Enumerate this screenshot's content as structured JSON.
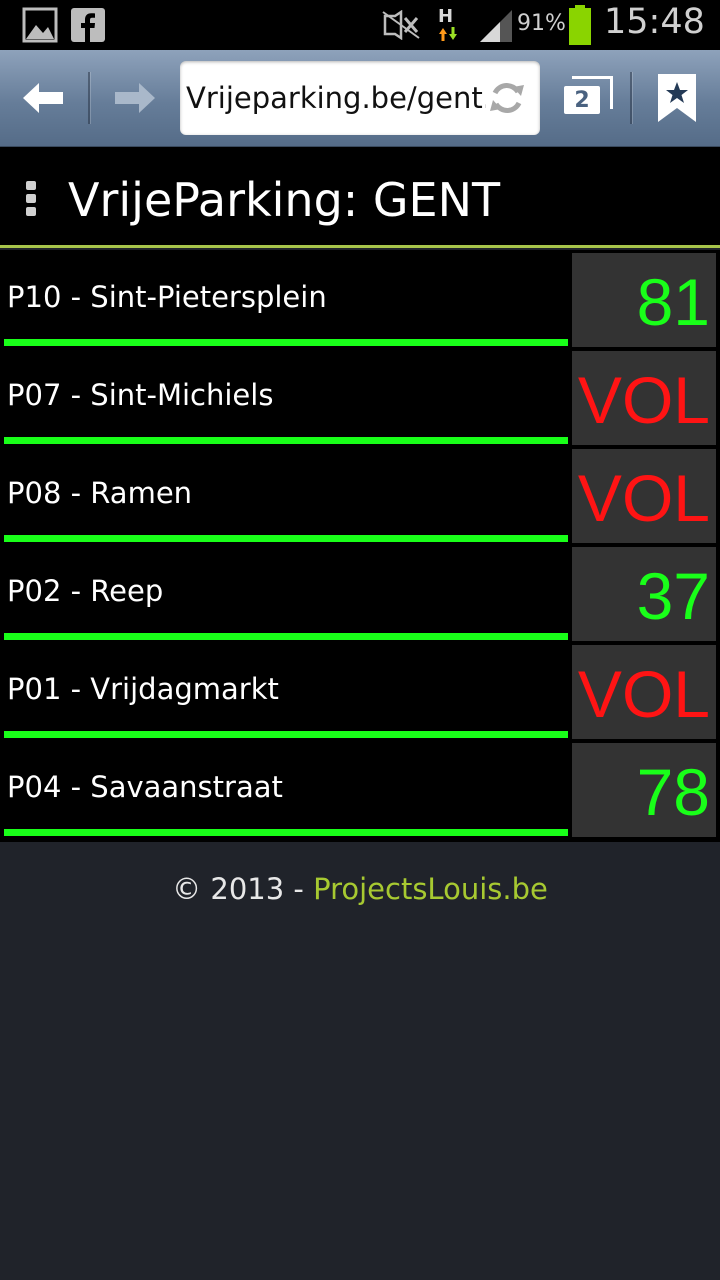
{
  "status_bar": {
    "icons": [
      "gallery-icon",
      "facebook-icon",
      "mute-icon",
      "network-h-icon",
      "signal-icon",
      "battery-icon"
    ],
    "network_type": "H",
    "battery_percent": "91%",
    "battery_level": 0.91,
    "time": "15:48"
  },
  "browser": {
    "url": "Vrijeparking.be/gent.",
    "tab_count": "2",
    "icons": [
      "back-arrow-icon",
      "forward-arrow-icon",
      "refresh-icon",
      "tabs-icon",
      "bookmark-icon"
    ]
  },
  "app": {
    "title": "VrijeParking: GENT"
  },
  "parkings": [
    {
      "name": "P10 - Sint-Pietersplein",
      "count": "81"
    },
    {
      "name": "P07 - Sint-Michiels",
      "count": "VOL"
    },
    {
      "name": "P08 - Ramen",
      "count": "VOL"
    },
    {
      "name": "P02 - Reep",
      "count": "37"
    },
    {
      "name": "P01 - Vrijdagmarkt",
      "count": "VOL"
    },
    {
      "name": "P04 - Savaanstraat",
      "count": "78"
    }
  ],
  "footer": {
    "prefix": "© 2013 - ",
    "link": "ProjectsLouis.be"
  },
  "colors": {
    "available": "#19ff19",
    "full": "#ff1414",
    "accent": "#a7c44b",
    "link": "#a7c931"
  }
}
